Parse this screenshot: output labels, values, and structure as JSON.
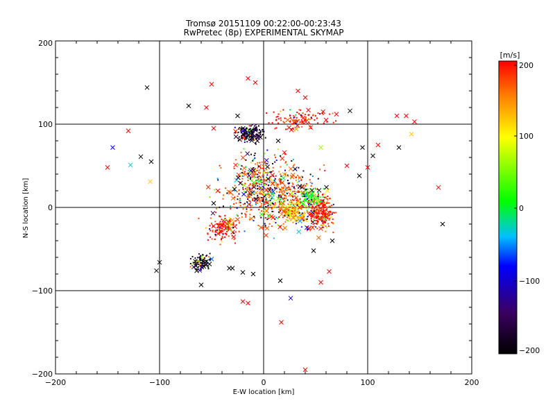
{
  "chart_data": {
    "type": "scatter",
    "title": "Tromsø 20151109 00:22:00-00:23:43",
    "subtitle": "RwPretec (8p) EXPERIMENTAL SKYMAP",
    "xlabel": "E-W location [km]",
    "ylabel": "N-S location [km]",
    "xlim": [
      -200,
      200
    ],
    "ylim": [
      -200,
      200
    ],
    "xticks": [
      "−200",
      "−100",
      "0",
      "100",
      "200"
    ],
    "yticks": [
      "−200",
      "−100",
      "0",
      "100",
      "200"
    ],
    "grid": true,
    "colorbar": {
      "label": "[m/s]",
      "range": [
        -200,
        200
      ],
      "ticks": [
        "−200",
        "−100",
        "0",
        "100",
        "200"
      ],
      "colormap": [
        "#000000",
        "#3b0060",
        "#0000ff",
        "#00c0ff",
        "#00ff00",
        "#ffff00",
        "#ff8000",
        "#ff0000"
      ]
    },
    "marker_types": [
      "small dot",
      "x cross"
    ],
    "clusters": [
      {
        "x": -13,
        "y": 88,
        "velocity": -180
      },
      {
        "x": 55,
        "y": -5,
        "velocity": 190
      },
      {
        "x": 30,
        "y": -5,
        "velocity": 120
      },
      {
        "x": 45,
        "y": 12,
        "velocity": 20
      },
      {
        "x": -40,
        "y": -25,
        "velocity": 200
      },
      {
        "x": -60,
        "y": -65,
        "velocity": -190
      },
      {
        "x": 35,
        "y": 105,
        "velocity": 200
      }
    ],
    "points": [
      {
        "x": -150,
        "y": 48,
        "v": 200,
        "m": "x"
      },
      {
        "x": -145,
        "y": 72,
        "v": -80,
        "m": "x"
      },
      {
        "x": -130,
        "y": 92,
        "v": 200,
        "m": "x"
      },
      {
        "x": -128,
        "y": 51,
        "v": -30,
        "m": "x"
      },
      {
        "x": -118,
        "y": 61,
        "v": -200,
        "m": "x"
      },
      {
        "x": -112,
        "y": 144,
        "v": -200,
        "m": "x"
      },
      {
        "x": -109,
        "y": 31,
        "v": 120,
        "m": "x"
      },
      {
        "x": -108,
        "y": 55,
        "v": -190,
        "m": "x"
      },
      {
        "x": -103,
        "y": -76,
        "v": -200,
        "m": "x"
      },
      {
        "x": -100,
        "y": -66,
        "v": -200,
        "m": "x"
      },
      {
        "x": -72,
        "y": 122,
        "v": -200,
        "m": "x"
      },
      {
        "x": -55,
        "y": 120,
        "v": 200,
        "m": "x"
      },
      {
        "x": -50,
        "y": 148,
        "v": 200,
        "m": "x"
      },
      {
        "x": -48,
        "y": 95,
        "v": 200,
        "m": "x"
      },
      {
        "x": -60,
        "y": -93,
        "v": -200,
        "m": "x"
      },
      {
        "x": -52,
        "y": -68,
        "v": -200,
        "m": "x"
      },
      {
        "x": -55,
        "y": -65,
        "v": -200,
        "m": "x"
      },
      {
        "x": -50,
        "y": -62,
        "v": -60,
        "m": "x"
      },
      {
        "x": -33,
        "y": -73,
        "v": -200,
        "m": "x"
      },
      {
        "x": -15,
        "y": 155,
        "v": 200,
        "m": "x"
      },
      {
        "x": -8,
        "y": 150,
        "v": 200,
        "m": "x"
      },
      {
        "x": -20,
        "y": 88,
        "v": -200,
        "m": "x"
      },
      {
        "x": -12,
        "y": 92,
        "v": -200,
        "m": "x"
      },
      {
        "x": -6,
        "y": 80,
        "v": -180,
        "m": "x"
      },
      {
        "x": -25,
        "y": 110,
        "v": -200,
        "m": "x"
      },
      {
        "x": 33,
        "y": 140,
        "v": 200,
        "m": "x"
      },
      {
        "x": 40,
        "y": 132,
        "v": 200,
        "m": "x"
      },
      {
        "x": 60,
        "y": 105,
        "v": 200,
        "m": "x"
      },
      {
        "x": 70,
        "y": 112,
        "v": 200,
        "m": "x"
      },
      {
        "x": 83,
        "y": 116,
        "v": -200,
        "m": "x"
      },
      {
        "x": 95,
        "y": 72,
        "v": -200,
        "m": "x"
      },
      {
        "x": 105,
        "y": 62,
        "v": -200,
        "m": "x"
      },
      {
        "x": 110,
        "y": 75,
        "v": 200,
        "m": "x"
      },
      {
        "x": 128,
        "y": 110,
        "v": 200,
        "m": "x"
      },
      {
        "x": 130,
        "y": 72,
        "v": -200,
        "m": "x"
      },
      {
        "x": 137,
        "y": 110,
        "v": 200,
        "m": "x"
      },
      {
        "x": 142,
        "y": 88,
        "v": 120,
        "m": "x"
      },
      {
        "x": 145,
        "y": 103,
        "v": 200,
        "m": "x"
      },
      {
        "x": 168,
        "y": 24,
        "v": 200,
        "m": "x"
      },
      {
        "x": 172,
        "y": -20,
        "v": -200,
        "m": "x"
      },
      {
        "x": -30,
        "y": -73,
        "v": -200,
        "m": "x"
      },
      {
        "x": -20,
        "y": -78,
        "v": -200,
        "m": "x"
      },
      {
        "x": -10,
        "y": -80,
        "v": -200,
        "m": "x"
      },
      {
        "x": -20,
        "y": -113,
        "v": 200,
        "m": "x"
      },
      {
        "x": -15,
        "y": -115,
        "v": 200,
        "m": "x"
      },
      {
        "x": 16,
        "y": -88,
        "v": -200,
        "m": "x"
      },
      {
        "x": 26,
        "y": -109,
        "v": -100,
        "m": "x"
      },
      {
        "x": 17,
        "y": -138,
        "v": 200,
        "m": "x"
      },
      {
        "x": 40,
        "y": -195,
        "v": 200,
        "m": "x"
      },
      {
        "x": 55,
        "y": -90,
        "v": 200,
        "m": "x"
      },
      {
        "x": 63,
        "y": -77,
        "v": 200,
        "m": "x"
      },
      {
        "x": 66,
        "y": -40,
        "v": -200,
        "m": "x"
      },
      {
        "x": 48,
        "y": -52,
        "v": -200,
        "m": "x"
      },
      {
        "x": -48,
        "y": 5,
        "v": -200,
        "m": "x"
      },
      {
        "x": -44,
        "y": 20,
        "v": 200,
        "m": "x"
      },
      {
        "x": -28,
        "y": 22,
        "v": -200,
        "m": "x"
      },
      {
        "x": 14,
        "y": 80,
        "v": -200,
        "m": "x"
      },
      {
        "x": 20,
        "y": 66,
        "v": 200,
        "m": "x"
      },
      {
        "x": 55,
        "y": 72,
        "v": 60,
        "m": "x"
      },
      {
        "x": 80,
        "y": 50,
        "v": 200,
        "m": "x"
      },
      {
        "x": 92,
        "y": 38,
        "v": -200,
        "m": "x"
      },
      {
        "x": 100,
        "y": 48,
        "v": 200,
        "m": "x"
      }
    ]
  }
}
